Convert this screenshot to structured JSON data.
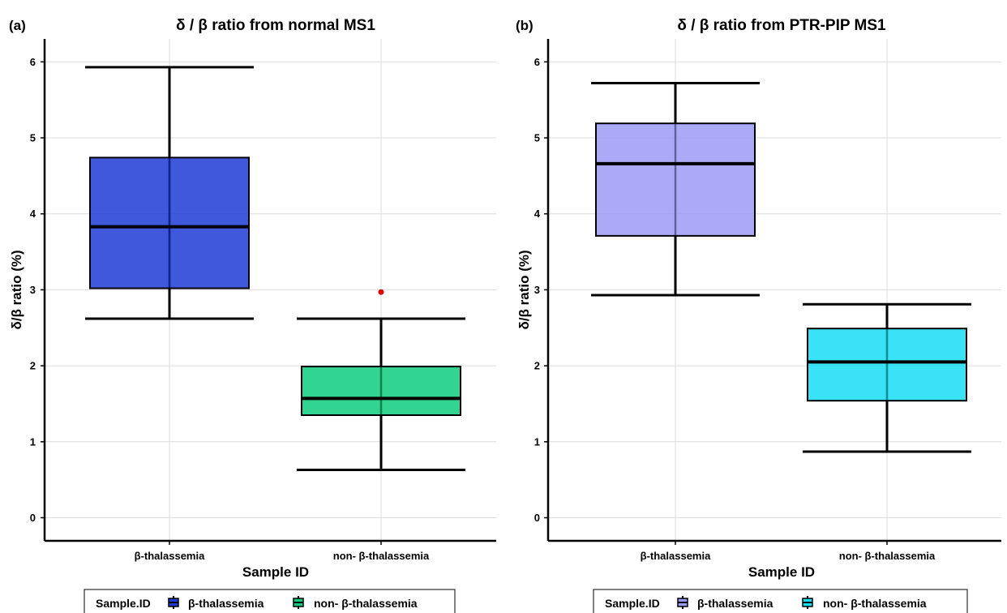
{
  "chart_data": [
    {
      "panel_tag": "(a)",
      "type": "boxplot",
      "title": "δ / β ratio from normal MS1",
      "xlabel": "Sample ID",
      "ylabel": "δ/β ratio (%)",
      "ylim": [
        -0.2,
        6.25
      ],
      "yticks": [
        0,
        1,
        2,
        3,
        4,
        5,
        6
      ],
      "grid": true,
      "legend": {
        "title": "Sample.ID",
        "position": "bottom",
        "entries": [
          "β-thalassemia",
          "non- β-thalassemia"
        ],
        "colors": [
          "#1f3bd6",
          "#0fcb7e"
        ]
      },
      "categories": [
        "β-thalassemia",
        "non- β-thalassemia"
      ],
      "boxes": [
        {
          "name": "β-thalassemia",
          "min": 2.62,
          "q1": 3.02,
          "median": 3.83,
          "q3": 4.74,
          "max": 5.93,
          "outliers": [],
          "color": "#1f3bd6"
        },
        {
          "name": "non- β-thalassemia",
          "min": 0.63,
          "q1": 1.35,
          "median": 1.57,
          "q3": 1.99,
          "max": 2.62,
          "outliers": [
            2.97
          ],
          "color": "#0fcb7e"
        }
      ]
    },
    {
      "panel_tag": "(b)",
      "type": "boxplot",
      "title": "δ / β ratio from PTR-PIP MS1",
      "xlabel": "Sample ID",
      "ylabel": "δ/β ratio (%)",
      "ylim": [
        -0.2,
        6.25
      ],
      "yticks": [
        0,
        1,
        2,
        3,
        4,
        5,
        6
      ],
      "grid": true,
      "legend": {
        "title": "Sample.ID",
        "position": "bottom",
        "entries": [
          "β-thalassemia",
          "non- β-thalassemia"
        ],
        "colors": [
          "#9b9bf5",
          "#17ddf5"
        ]
      },
      "categories": [
        "β-thalassemia",
        "non- β-thalassemia"
      ],
      "boxes": [
        {
          "name": "β-thalassemia",
          "min": 2.93,
          "q1": 3.71,
          "median": 4.66,
          "q3": 5.19,
          "max": 5.72,
          "outliers": [],
          "color": "#9b9bf5"
        },
        {
          "name": "non- β-thalassemia",
          "min": 0.87,
          "q1": 1.54,
          "median": 2.05,
          "q3": 2.49,
          "max": 2.81,
          "outliers": [],
          "color": "#17ddf5"
        }
      ]
    }
  ],
  "colors": {
    "outlier": "#e00000",
    "grid": "#dcdcdc",
    "stroke": "#000000"
  }
}
